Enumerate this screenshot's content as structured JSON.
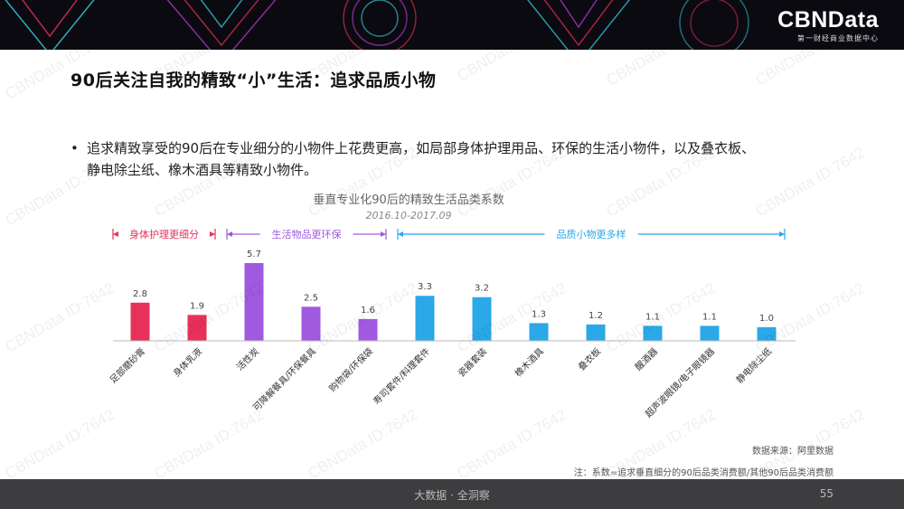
{
  "brand": {
    "logo": "CBNData",
    "subtitle": "第一财经商业数据中心"
  },
  "title": "90后关注自我的精致“小”生活：追求品质小物",
  "bullet": {
    "symbol": "•",
    "line1": "追求精致享受的90后在专业细分的小物件上花费更高，如局部身体护理用品、环保的生活小物件，以及叠衣板、",
    "line2": "静电除尘纸、橡木酒具等精致小物件。"
  },
  "chart_data": {
    "type": "bar",
    "title": "垂直专业化90后的精致生活品类系数",
    "subtitle": "2016.10-2017.09",
    "categories": [
      "足部磨砂膏",
      "身体乳液",
      "活性炭",
      "可降解餐具/环保餐具",
      "购物袋/环保袋",
      "寿司套件/料理套件",
      "瓷器套装",
      "橡木酒具",
      "叠衣板",
      "醒酒器",
      "超声波眼镜/电子眼镜器",
      "静电除尘纸"
    ],
    "values": [
      2.8,
      1.9,
      5.7,
      2.5,
      1.6,
      3.3,
      3.2,
      1.3,
      1.2,
      1.1,
      1.1,
      1.0
    ],
    "value_labels": [
      "2.8",
      "1.9",
      "5.7",
      "2.5",
      "1.6",
      "3.3",
      "3.2",
      "1.3",
      "1.2",
      "1.1",
      "1.1",
      "1.0"
    ],
    "ylim": [
      0,
      5.7
    ],
    "groups": [
      {
        "label": "身体护理更细分",
        "start": 0,
        "end": 1,
        "color": "#e8315a"
      },
      {
        "label": "生活物品更环保",
        "start": 2,
        "end": 4,
        "color": "#a05ae0"
      },
      {
        "label": "品质小物更多样",
        "start": 5,
        "end": 11,
        "color": "#2aa8e8"
      }
    ]
  },
  "source": "数据来源：阿里数据",
  "note": "注：系数=追求垂直细分的90后品类消费额/其他90后品类消费额",
  "footer": {
    "center": "大数据 · 全洞察",
    "page": "55"
  },
  "watermark": "CBNData ID:7642"
}
